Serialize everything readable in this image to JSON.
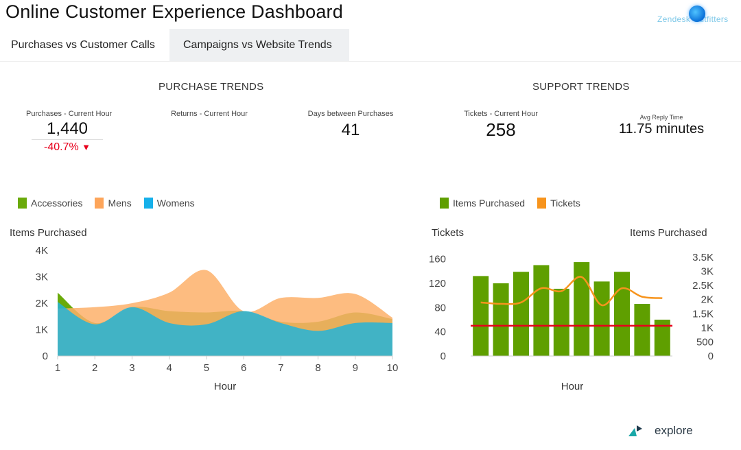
{
  "header": {
    "title": "Online Customer Experience Dashboard",
    "logo_text": "Zendesk Outfitters"
  },
  "tabs": [
    {
      "label": "Purchases vs Customer Calls"
    },
    {
      "label": "Campaigns vs Website Trends"
    }
  ],
  "sections": {
    "purchase": "PURCHASE TRENDS",
    "support": "SUPPORT TRENDS"
  },
  "kpis": {
    "purchases": {
      "label": "Purchases - Current Hour",
      "value": "1,440",
      "change": "-40.7%",
      "change_arrow": "▼"
    },
    "returns": {
      "label": "Returns - Current Hour"
    },
    "days": {
      "label": "Days between Purchases",
      "value": "41"
    },
    "tickets": {
      "label": "Tickets - Current Hour",
      "value": "258"
    },
    "reply": {
      "label": "Avg Reply Time",
      "value": "11.75 minutes"
    }
  },
  "colors": {
    "accessories": "#6aaa0a",
    "mens": "#fdb06a",
    "womens": "#23b4d8",
    "items_bar": "#5f9f00",
    "tickets_line": "#f7941d",
    "ref_line": "#e8001c"
  },
  "chart_data": [
    {
      "type": "area",
      "title": "",
      "ylabel": "Items Purchased",
      "xlabel": "Hour",
      "x": [
        1,
        2,
        3,
        4,
        5,
        6,
        7,
        8,
        9,
        10
      ],
      "ylim": [
        0,
        4000
      ],
      "yticks": [
        0,
        1000,
        2000,
        3000,
        4000
      ],
      "ytick_labels": [
        "0",
        "1K",
        "2K",
        "3K",
        "4K"
      ],
      "legend": "top-left",
      "series": [
        {
          "name": "Accessories",
          "values": [
            2400,
            1250,
            1850,
            1700,
            1650,
            1700,
            1300,
            1300,
            1650,
            1400
          ]
        },
        {
          "name": "Mens",
          "values": [
            1800,
            1850,
            2000,
            2400,
            3250,
            1700,
            2200,
            2200,
            2350,
            1450
          ]
        },
        {
          "name": "Womens",
          "values": [
            2050,
            1200,
            1850,
            1250,
            1200,
            1700,
            1250,
            950,
            1250,
            1250
          ]
        }
      ]
    },
    {
      "type": "bar",
      "title": "",
      "xlabel": "Hour",
      "ylabel_left": "Tickets",
      "ylabel_right": "Items Purchased",
      "x": [
        1,
        2,
        3,
        4,
        5,
        6,
        7,
        8,
        9,
        10
      ],
      "ylim_left": [
        0,
        180
      ],
      "yticks_left": [
        0,
        40,
        80,
        120,
        160
      ],
      "ylim_right": [
        0,
        3500
      ],
      "yticks_right": [
        0,
        500,
        1000,
        1500,
        2000,
        2500,
        3000,
        3500
      ],
      "ytick_labels_right": [
        "0",
        "500",
        "1K",
        "1.5K",
        "2K",
        "2.5K",
        "3K",
        "3.5K"
      ],
      "legend": "top-left",
      "series": [
        {
          "name": "Items Purchased",
          "axis": "left",
          "values": [
            132,
            120,
            139,
            150,
            111,
            155,
            123,
            139,
            86,
            60
          ]
        },
        {
          "name": "Tickets",
          "axis": "right",
          "values": [
            1900,
            1850,
            1900,
            2400,
            2300,
            2800,
            1800,
            2400,
            2100,
            2050
          ]
        }
      ],
      "reference_line": 50
    }
  ],
  "footer": {
    "brand": "explore"
  }
}
